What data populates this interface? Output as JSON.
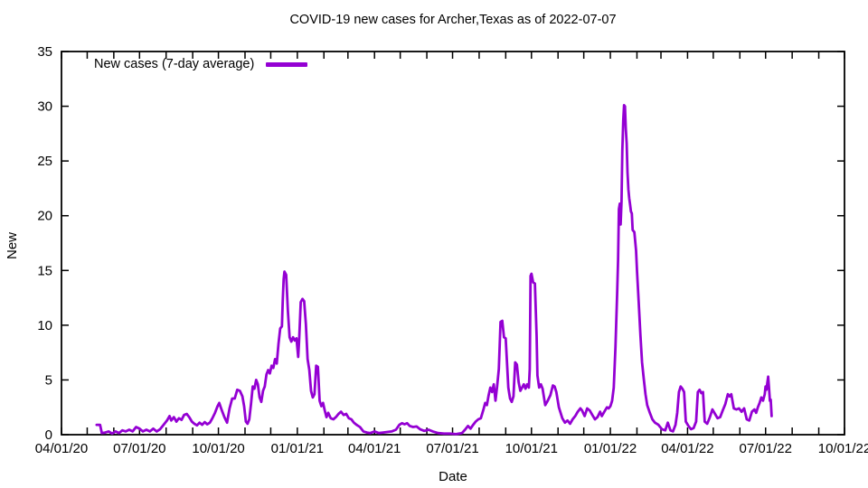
{
  "chart_data": {
    "type": "line",
    "title": "COVID-19 new cases for Archer,Texas as of 2022-07-07",
    "xlabel": "Date",
    "ylabel": "New",
    "grid": false,
    "legend_position": "top-left",
    "background": "#ffffff",
    "axis_color": "#000000",
    "ylim": [
      0,
      35
    ],
    "y_ticks": [
      0,
      5,
      10,
      15,
      20,
      25,
      30,
      35
    ],
    "x_start_date": "2020-04-01",
    "x_end_date": "2022-10-01",
    "x_total_days": 913,
    "x_minor_tick_interval": "month",
    "x_tick_labels": [
      "04/01/20",
      "07/01/20",
      "10/01/20",
      "01/01/21",
      "04/01/21",
      "07/01/21",
      "10/01/21",
      "01/01/22",
      "04/01/22",
      "07/01/22",
      "10/01/22"
    ],
    "legend": [
      {
        "name": "New cases (7-day average)",
        "color": "#9400d3"
      }
    ],
    "points_format": "[days since 2020-04-01, 7-day average new cases]",
    "points": [
      [
        41,
        0.9
      ],
      [
        45,
        0.9
      ],
      [
        47,
        0.15
      ],
      [
        51,
        0.2
      ],
      [
        55,
        0.3
      ],
      [
        59,
        0.1
      ],
      [
        63,
        0.3
      ],
      [
        67,
        0.15
      ],
      [
        71,
        0.4
      ],
      [
        75,
        0.3
      ],
      [
        79,
        0.45
      ],
      [
        83,
        0.3
      ],
      [
        87,
        0.7
      ],
      [
        91,
        0.55
      ],
      [
        95,
        0.3
      ],
      [
        99,
        0.45
      ],
      [
        103,
        0.3
      ],
      [
        107,
        0.55
      ],
      [
        111,
        0.3
      ],
      [
        115,
        0.5
      ],
      [
        119,
        0.9
      ],
      [
        123,
        1.3
      ],
      [
        126,
        1.7
      ],
      [
        128,
        1.3
      ],
      [
        131,
        1.6
      ],
      [
        134,
        1.2
      ],
      [
        137,
        1.5
      ],
      [
        140,
        1.35
      ],
      [
        143,
        1.8
      ],
      [
        146,
        1.9
      ],
      [
        149,
        1.6
      ],
      [
        152,
        1.2
      ],
      [
        155,
        1.0
      ],
      [
        158,
        0.85
      ],
      [
        161,
        1.1
      ],
      [
        164,
        0.9
      ],
      [
        167,
        1.15
      ],
      [
        170,
        0.95
      ],
      [
        173,
        1.1
      ],
      [
        176,
        1.5
      ],
      [
        179,
        2.0
      ],
      [
        182,
        2.6
      ],
      [
        184,
        2.9
      ],
      [
        187,
        2.2
      ],
      [
        190,
        1.6
      ],
      [
        193,
        1.1
      ],
      [
        196,
        2.4
      ],
      [
        199,
        3.3
      ],
      [
        202,
        3.3
      ],
      [
        205,
        4.1
      ],
      [
        208,
        4.0
      ],
      [
        211,
        3.5
      ],
      [
        213,
        2.6
      ],
      [
        215,
        1.2
      ],
      [
        217,
        1.0
      ],
      [
        219,
        1.4
      ],
      [
        221,
        2.8
      ],
      [
        223,
        4.4
      ],
      [
        225,
        4.2
      ],
      [
        227,
        5.0
      ],
      [
        229,
        4.6
      ],
      [
        231,
        3.4
      ],
      [
        233,
        3.0
      ],
      [
        235,
        4.0
      ],
      [
        237,
        4.4
      ],
      [
        239,
        5.5
      ],
      [
        241,
        5.9
      ],
      [
        243,
        5.6
      ],
      [
        245,
        6.3
      ],
      [
        247,
        6.1
      ],
      [
        249,
        6.9
      ],
      [
        251,
        6.5
      ],
      [
        253,
        8.3
      ],
      [
        255,
        9.7
      ],
      [
        257,
        9.9
      ],
      [
        258,
        12.2
      ],
      [
        259,
        14.2
      ],
      [
        260,
        14.9
      ],
      [
        262,
        14.6
      ],
      [
        264,
        11.3
      ],
      [
        266,
        8.9
      ],
      [
        268,
        8.5
      ],
      [
        270,
        8.9
      ],
      [
        272,
        8.6
      ],
      [
        274,
        8.8
      ],
      [
        276,
        7.1
      ],
      [
        277,
        8.4
      ],
      [
        278,
        10.3
      ],
      [
        279,
        12.1
      ],
      [
        281,
        12.4
      ],
      [
        283,
        12.2
      ],
      [
        285,
        10.1
      ],
      [
        287,
        6.9
      ],
      [
        289,
        5.9
      ],
      [
        291,
        4.0
      ],
      [
        293,
        3.4
      ],
      [
        295,
        3.7
      ],
      [
        297,
        6.3
      ],
      [
        299,
        6.2
      ],
      [
        301,
        3.1
      ],
      [
        303,
        2.6
      ],
      [
        305,
        2.9
      ],
      [
        307,
        2.2
      ],
      [
        309,
        1.6
      ],
      [
        311,
        2.0
      ],
      [
        314,
        1.5
      ],
      [
        317,
        1.4
      ],
      [
        320,
        1.6
      ],
      [
        323,
        1.9
      ],
      [
        326,
        2.1
      ],
      [
        329,
        1.8
      ],
      [
        332,
        1.9
      ],
      [
        335,
        1.5
      ],
      [
        338,
        1.4
      ],
      [
        341,
        1.1
      ],
      [
        344,
        0.9
      ],
      [
        348,
        0.7
      ],
      [
        352,
        0.3
      ],
      [
        356,
        0.2
      ],
      [
        360,
        0.15
      ],
      [
        365,
        0.3
      ],
      [
        370,
        0.15
      ],
      [
        375,
        0.2
      ],
      [
        380,
        0.25
      ],
      [
        385,
        0.3
      ],
      [
        390,
        0.45
      ],
      [
        394,
        0.9
      ],
      [
        397,
        1.05
      ],
      [
        400,
        0.95
      ],
      [
        403,
        1.05
      ],
      [
        406,
        0.8
      ],
      [
        410,
        0.7
      ],
      [
        414,
        0.75
      ],
      [
        418,
        0.5
      ],
      [
        423,
        0.35
      ],
      [
        428,
        0.45
      ],
      [
        433,
        0.3
      ],
      [
        439,
        0.15
      ],
      [
        446,
        0.1
      ],
      [
        453,
        0.1
      ],
      [
        460,
        0.05
      ],
      [
        467,
        0.15
      ],
      [
        471,
        0.5
      ],
      [
        474,
        0.8
      ],
      [
        477,
        0.55
      ],
      [
        480,
        0.9
      ],
      [
        483,
        1.2
      ],
      [
        486,
        1.4
      ],
      [
        489,
        1.5
      ],
      [
        492,
        2.3
      ],
      [
        494,
        2.9
      ],
      [
        496,
        2.7
      ],
      [
        498,
        3.6
      ],
      [
        500,
        4.3
      ],
      [
        502,
        3.9
      ],
      [
        504,
        4.6
      ],
      [
        506,
        3.1
      ],
      [
        508,
        4.4
      ],
      [
        510,
        6.0
      ],
      [
        512,
        10.3
      ],
      [
        514,
        10.4
      ],
      [
        516,
        8.9
      ],
      [
        518,
        8.8
      ],
      [
        521,
        4.3
      ],
      [
        523,
        3.3
      ],
      [
        525,
        3.0
      ],
      [
        527,
        3.5
      ],
      [
        529,
        6.6
      ],
      [
        531,
        6.4
      ],
      [
        533,
        4.8
      ],
      [
        535,
        4.0
      ],
      [
        537,
        4.3
      ],
      [
        539,
        4.6
      ],
      [
        541,
        4.2
      ],
      [
        543,
        4.6
      ],
      [
        545,
        4.3
      ],
      [
        546,
        6.0
      ],
      [
        547,
        14.5
      ],
      [
        548,
        14.7
      ],
      [
        550,
        13.9
      ],
      [
        552,
        13.8
      ],
      [
        554,
        9.0
      ],
      [
        555,
        5.4
      ],
      [
        557,
        4.3
      ],
      [
        559,
        4.6
      ],
      [
        561,
        4.2
      ],
      [
        564,
        2.7
      ],
      [
        567,
        3.1
      ],
      [
        570,
        3.6
      ],
      [
        573,
        4.5
      ],
      [
        575,
        4.4
      ],
      [
        577,
        3.9
      ],
      [
        580,
        2.5
      ],
      [
        584,
        1.5
      ],
      [
        587,
        1.1
      ],
      [
        590,
        1.3
      ],
      [
        593,
        1.0
      ],
      [
        596,
        1.4
      ],
      [
        599,
        1.7
      ],
      [
        602,
        2.1
      ],
      [
        605,
        2.4
      ],
      [
        607,
        2.2
      ],
      [
        610,
        1.7
      ],
      [
        613,
        2.4
      ],
      [
        616,
        2.2
      ],
      [
        619,
        1.8
      ],
      [
        622,
        1.4
      ],
      [
        625,
        1.6
      ],
      [
        628,
        2.1
      ],
      [
        630,
        1.7
      ],
      [
        633,
        2.1
      ],
      [
        636,
        2.5
      ],
      [
        638,
        2.4
      ],
      [
        640,
        2.6
      ],
      [
        642,
        3.1
      ],
      [
        644,
        4.3
      ],
      [
        646,
        8.0
      ],
      [
        648,
        13.0
      ],
      [
        649,
        16.0
      ],
      [
        650,
        20.6
      ],
      [
        651,
        21.1
      ],
      [
        652,
        19.2
      ],
      [
        653,
        21.3
      ],
      [
        654,
        26.0
      ],
      [
        655,
        28.7
      ],
      [
        656,
        30.1
      ],
      [
        657,
        30.0
      ],
      [
        658,
        28.0
      ],
      [
        659,
        26.6
      ],
      [
        660,
        24.0
      ],
      [
        661,
        22.4
      ],
      [
        662,
        21.6
      ],
      [
        663,
        21.0
      ],
      [
        664,
        20.4
      ],
      [
        665,
        20.2
      ],
      [
        666,
        18.7
      ],
      [
        668,
        18.5
      ],
      [
        670,
        16.8
      ],
      [
        671,
        15.0
      ],
      [
        673,
        12.1
      ],
      [
        675,
        9.1
      ],
      [
        677,
        6.6
      ],
      [
        679,
        5.1
      ],
      [
        681,
        3.7
      ],
      [
        683,
        2.7
      ],
      [
        686,
        2.0
      ],
      [
        689,
        1.4
      ],
      [
        692,
        1.1
      ],
      [
        696,
        0.9
      ],
      [
        700,
        0.5
      ],
      [
        704,
        0.4
      ],
      [
        707,
        1.1
      ],
      [
        710,
        0.4
      ],
      [
        713,
        0.3
      ],
      [
        716,
        0.9
      ],
      [
        718,
        2.0
      ],
      [
        720,
        3.9
      ],
      [
        722,
        4.4
      ],
      [
        724,
        4.2
      ],
      [
        726,
        3.9
      ],
      [
        728,
        1.2
      ],
      [
        731,
        0.8
      ],
      [
        734,
        0.5
      ],
      [
        737,
        0.6
      ],
      [
        740,
        1.2
      ],
      [
        742,
        3.9
      ],
      [
        744,
        4.1
      ],
      [
        746,
        3.8
      ],
      [
        748,
        3.9
      ],
      [
        750,
        1.2
      ],
      [
        753,
        1.0
      ],
      [
        756,
        1.6
      ],
      [
        759,
        2.3
      ],
      [
        762,
        1.9
      ],
      [
        765,
        1.5
      ],
      [
        768,
        1.6
      ],
      [
        771,
        2.2
      ],
      [
        774,
        2.8
      ],
      [
        777,
        3.7
      ],
      [
        779,
        3.5
      ],
      [
        781,
        3.7
      ],
      [
        784,
        2.4
      ],
      [
        787,
        2.3
      ],
      [
        790,
        2.4
      ],
      [
        793,
        2.1
      ],
      [
        796,
        2.4
      ],
      [
        799,
        1.4
      ],
      [
        802,
        1.3
      ],
      [
        805,
        2.1
      ],
      [
        808,
        2.3
      ],
      [
        810,
        2.0
      ],
      [
        812,
        2.5
      ],
      [
        814,
        2.9
      ],
      [
        816,
        3.4
      ],
      [
        818,
        3.1
      ],
      [
        820,
        3.7
      ],
      [
        821,
        4.4
      ],
      [
        822,
        4.1
      ],
      [
        823,
        4.7
      ],
      [
        824,
        5.3
      ],
      [
        825,
        4.3
      ],
      [
        826,
        3.1
      ],
      [
        827,
        3.2
      ],
      [
        828,
        1.7
      ]
    ]
  }
}
